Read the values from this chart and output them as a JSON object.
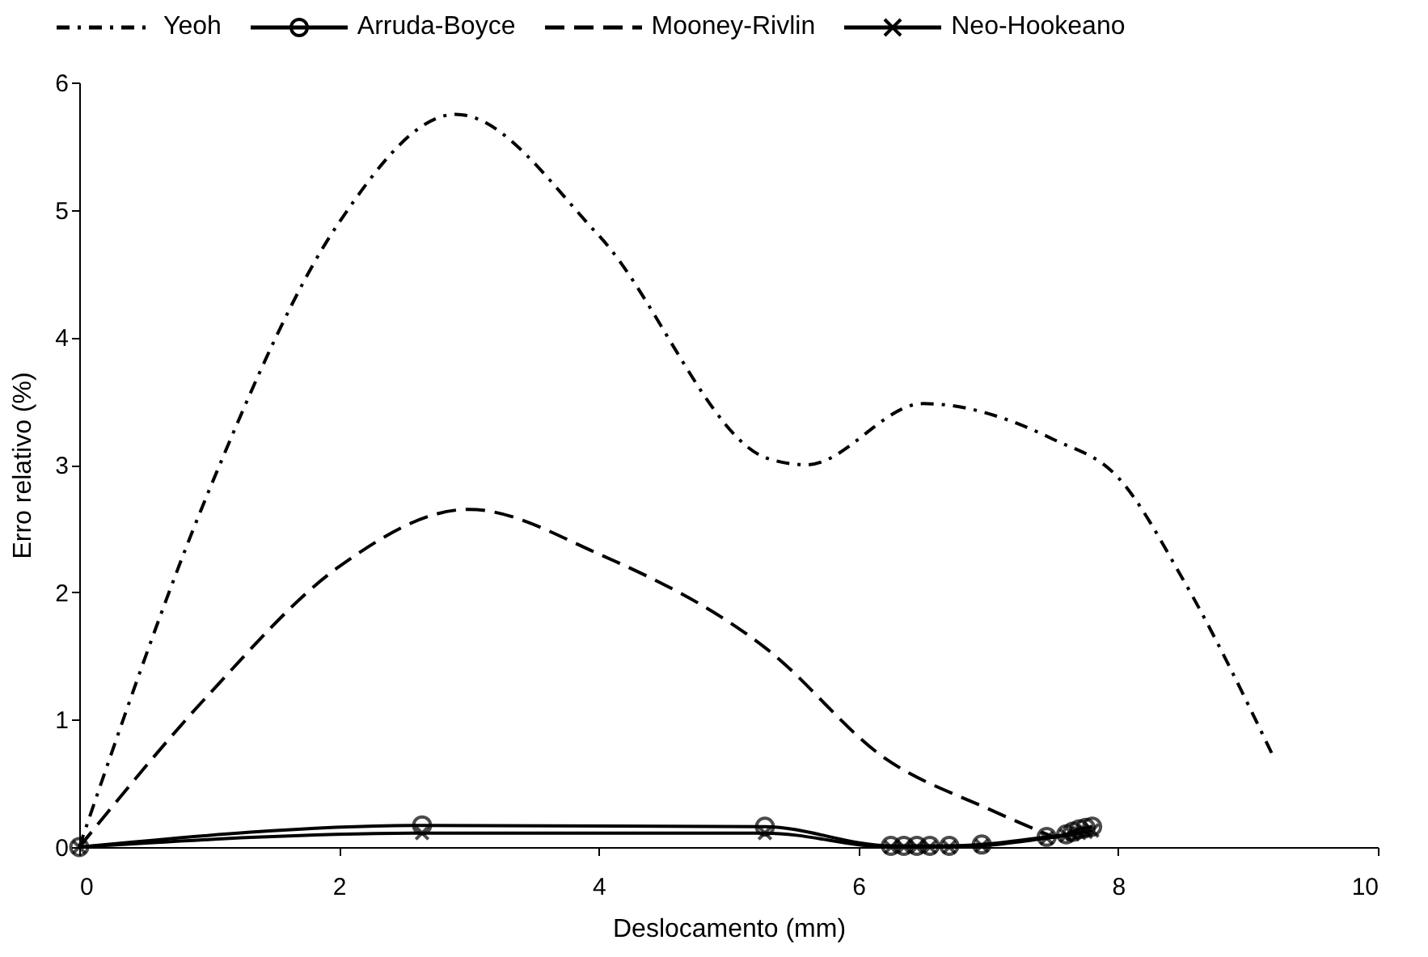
{
  "chart_data": {
    "type": "line",
    "xlabel": "Deslocamento (mm)",
    "ylabel": "Erro relativo (%)",
    "xlim": [
      0,
      10
    ],
    "xticks": [
      0,
      2,
      4,
      6,
      8,
      10
    ],
    "ylim": [
      0,
      6
    ],
    "yticks": [
      0,
      1,
      2,
      3,
      4,
      5,
      6
    ],
    "grid": false,
    "legend": "top",
    "series": [
      {
        "name": "Yeoh",
        "color": "#000000",
        "line_style": "dashdot",
        "marker": "none",
        "x": [
          0,
          1,
          2,
          2.9,
          4,
          5.3,
          5.6,
          6.5,
          7.5,
          8,
          8.5,
          9.2
        ],
        "values": [
          0,
          2.8,
          4.9,
          5.75,
          4.8,
          3.05,
          3.0,
          3.48,
          3.2,
          2.9,
          2.1,
          0.7
        ]
      },
      {
        "name": "Arruda-Boyce",
        "color": "#000000",
        "line_style": "solid",
        "marker": "circle",
        "x": [
          0,
          2.64,
          5.28,
          6.25,
          6.35,
          6.45,
          6.55,
          6.7,
          6.95,
          7.45,
          7.6,
          7.65,
          7.7,
          7.75,
          7.8
        ],
        "values": [
          0,
          0.17,
          0.16,
          0.01,
          0.01,
          0.01,
          0.01,
          0.01,
          0.02,
          0.08,
          0.1,
          0.12,
          0.14,
          0.15,
          0.16
        ]
      },
      {
        "name": "Mooney-Rivlin",
        "color": "#000000",
        "line_style": "dashed",
        "marker": "none",
        "x": [
          0,
          1,
          2,
          3,
          4,
          5.3,
          6.2,
          7,
          7.5
        ],
        "values": [
          0,
          1.2,
          2.2,
          2.65,
          2.3,
          1.55,
          0.7,
          0.3,
          0.08
        ]
      },
      {
        "name": "Neo-Hookeano",
        "color": "#000000",
        "line_style": "solid",
        "marker": "cross",
        "x": [
          0,
          2.64,
          5.28,
          6.25,
          6.35,
          6.45,
          6.55,
          6.7,
          6.95,
          7.45,
          7.6,
          7.65,
          7.7,
          7.75,
          7.8
        ],
        "values": [
          0,
          0.11,
          0.11,
          0,
          0,
          0,
          0,
          0,
          0.01,
          0.07,
          0.09,
          0.1,
          0.11,
          0.12,
          0.13
        ]
      }
    ]
  }
}
